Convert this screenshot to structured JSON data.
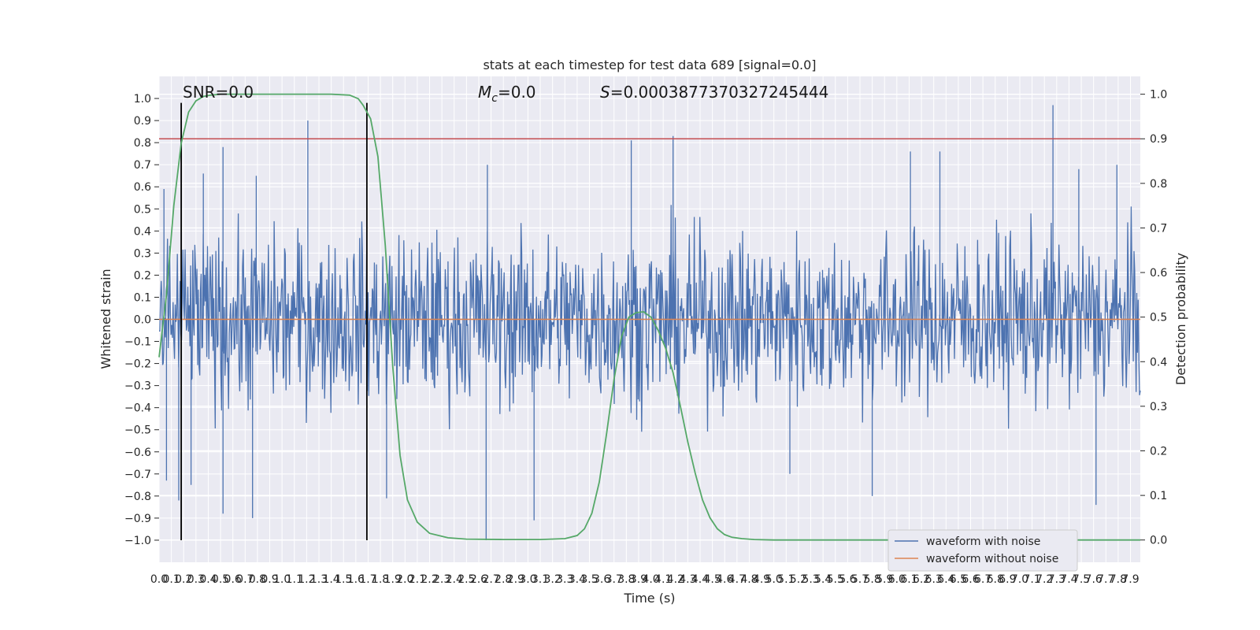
{
  "chart_data": {
    "type": "line",
    "title": "stats at each timestep for test data 689 [signal=0.0]",
    "xlabel": "Time (s)",
    "ylabel": "Whitened strain",
    "ylabel_right": "Detection probability",
    "xlim": [
      0.0,
      7.98
    ],
    "ylim": [
      -1.1,
      1.1
    ],
    "ylim_right": [
      -0.05,
      1.04
    ],
    "x_ticks": [
      "0.0",
      "0.1",
      "0.2",
      "0.3",
      "0.4",
      "0.5",
      "0.6",
      "0.7",
      "0.8",
      "0.9",
      "1.0",
      "1.1",
      "1.2",
      "1.3",
      "1.4",
      "1.5",
      "1.6",
      "1.7",
      "1.8",
      "1.9",
      "2.0",
      "2.1",
      "2.2",
      "2.3",
      "2.4",
      "2.5",
      "2.6",
      "2.7",
      "2.8",
      "2.9",
      "3.0",
      "3.1",
      "3.2",
      "3.3",
      "3.4",
      "3.5",
      "3.6",
      "3.7",
      "3.8",
      "3.9",
      "4.0",
      "4.1",
      "4.2",
      "4.3",
      "4.4",
      "4.5",
      "4.6",
      "4.7",
      "4.8",
      "4.9",
      "5.0",
      "5.1",
      "5.2",
      "5.3",
      "5.4",
      "5.5",
      "5.6",
      "5.7",
      "5.8",
      "5.9",
      "6.0",
      "6.1",
      "6.2",
      "6.3",
      "6.4",
      "6.5",
      "6.6",
      "6.7",
      "6.8",
      "6.9",
      "7.0",
      "7.1",
      "7.2",
      "7.3",
      "7.4",
      "7.5",
      "7.6",
      "7.7",
      "7.8",
      "7.9"
    ],
    "y_ticks_left": [
      "1.0",
      "0.9",
      "0.8",
      "0.7",
      "0.6",
      "0.5",
      "0.4",
      "0.3",
      "0.2",
      "0.1",
      "0.0",
      "−0.1",
      "−0.2",
      "−0.3",
      "−0.4",
      "−0.5",
      "−0.6",
      "−0.7",
      "−0.8",
      "−0.9",
      "−1.0"
    ],
    "y_ticks_right": [
      "1.0",
      "0.9",
      "0.8",
      "0.7",
      "0.6",
      "0.5",
      "0.4",
      "0.3",
      "0.2",
      "0.1",
      "0.0"
    ],
    "annotations": {
      "snr": "SNR=0.0",
      "mc_symbol": "M",
      "mc_sub": "c",
      "mc_value": "=0.0",
      "s_symbol": "S",
      "s_value": "=0.0003877370327245444"
    },
    "legend": {
      "placement": "lower-right",
      "entries": [
        "waveform with noise",
        "waveform without noise"
      ]
    },
    "colors": {
      "noise": "#4c72b0",
      "clean": "#dd8452",
      "probability": "#55a868",
      "threshold": "#c44e52",
      "marker": "#000000",
      "background": "#eaeaf2",
      "grid": "#ffffff"
    },
    "threshold_right": 0.9,
    "vertical_markers_x": [
      0.18,
      1.69
    ],
    "noise_envelope": {
      "x": [
        0.0,
        7.98
      ],
      "amplitude": 0.35,
      "samples": 1400,
      "seed": 689
    },
    "noise_spikes": [
      {
        "x": 0.04,
        "y": 0.59
      },
      {
        "x": 0.06,
        "y": -0.73
      },
      {
        "x": 0.16,
        "y": -0.82
      },
      {
        "x": 0.26,
        "y": -0.75
      },
      {
        "x": 0.36,
        "y": 0.66
      },
      {
        "x": 0.52,
        "y": 0.78
      },
      {
        "x": 0.52,
        "y": -0.88
      },
      {
        "x": 0.76,
        "y": -0.9
      },
      {
        "x": 0.79,
        "y": 0.65
      },
      {
        "x": 1.21,
        "y": 0.9
      },
      {
        "x": 1.85,
        "y": -0.81
      },
      {
        "x": 2.67,
        "y": 0.7
      },
      {
        "x": 2.66,
        "y": -1.0
      },
      {
        "x": 3.05,
        "y": -0.91
      },
      {
        "x": 3.84,
        "y": 0.81
      },
      {
        "x": 4.18,
        "y": 0.83
      },
      {
        "x": 5.13,
        "y": -0.7
      },
      {
        "x": 5.8,
        "y": -0.8
      },
      {
        "x": 6.11,
        "y": 0.76
      },
      {
        "x": 6.35,
        "y": 0.76
      },
      {
        "x": 7.27,
        "y": 0.97
      },
      {
        "x": 7.48,
        "y": 0.68
      },
      {
        "x": 7.62,
        "y": -0.84
      },
      {
        "x": 7.79,
        "y": 0.7
      }
    ],
    "series": [
      {
        "name": "waveform with noise",
        "axis": "left",
        "style": "noise"
      },
      {
        "name": "waveform without noise",
        "axis": "left",
        "x": [
          0.0,
          7.98
        ],
        "y": [
          0.0,
          0.0
        ]
      },
      {
        "axis": "right",
        "x": [
          0.0,
          0.06,
          0.12,
          0.18,
          0.24,
          0.3,
          0.36,
          0.42,
          0.5,
          0.6,
          0.8,
          1.0,
          1.2,
          1.4,
          1.55,
          1.62,
          1.66,
          1.72,
          1.78,
          1.84,
          1.9,
          1.96,
          2.02,
          2.1,
          2.2,
          2.35,
          2.5,
          2.8,
          3.1,
          3.3,
          3.4,
          3.46,
          3.52,
          3.58,
          3.64,
          3.7,
          3.76,
          3.82,
          3.88,
          3.94,
          4.0,
          4.06,
          4.12,
          4.18,
          4.24,
          4.3,
          4.36,
          4.42,
          4.48,
          4.54,
          4.6,
          4.66,
          4.74,
          4.84,
          5.0,
          5.5,
          6.0,
          7.0,
          7.98
        ],
        "y": [
          0.41,
          0.55,
          0.75,
          0.89,
          0.96,
          0.985,
          0.995,
          0.998,
          1.0,
          1.0,
          1.0,
          1.0,
          1.0,
          1.0,
          0.998,
          0.99,
          0.975,
          0.945,
          0.86,
          0.66,
          0.39,
          0.19,
          0.09,
          0.04,
          0.015,
          0.005,
          0.002,
          0.001,
          0.001,
          0.003,
          0.01,
          0.025,
          0.06,
          0.13,
          0.24,
          0.36,
          0.455,
          0.5,
          0.51,
          0.512,
          0.5,
          0.47,
          0.43,
          0.375,
          0.3,
          0.22,
          0.15,
          0.09,
          0.05,
          0.025,
          0.012,
          0.006,
          0.003,
          0.001,
          0.0,
          0.0,
          0.0,
          0.0,
          0.0
        ]
      }
    ]
  }
}
